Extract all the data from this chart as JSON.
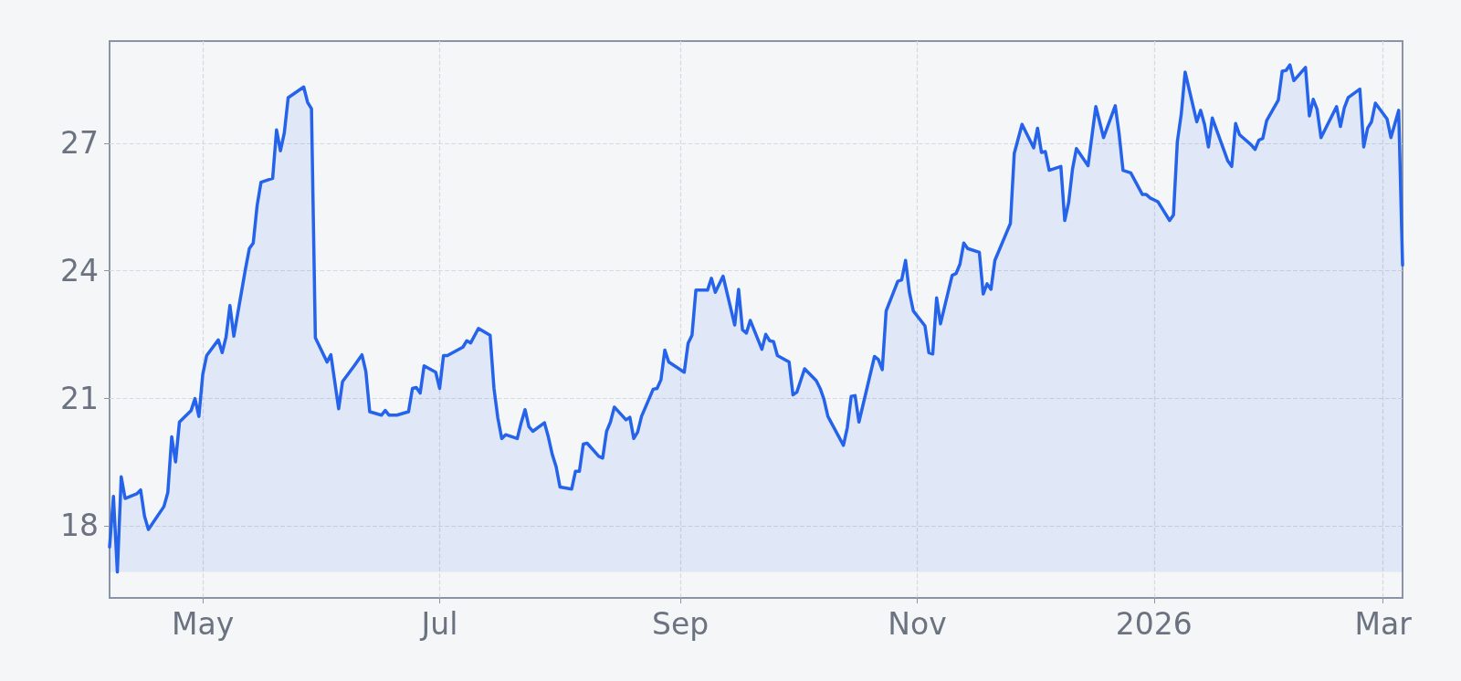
{
  "chart_data": {
    "type": "area",
    "x": [
      "2025-04-07",
      "2025-04-08",
      "2025-04-09",
      "2025-04-10",
      "2025-04-11",
      "2025-04-14",
      "2025-04-15",
      "2025-04-16",
      "2025-04-17",
      "2025-04-21",
      "2025-04-22",
      "2025-04-23",
      "2025-04-24",
      "2025-04-25",
      "2025-04-28",
      "2025-04-29",
      "2025-04-30",
      "2025-05-01",
      "2025-05-02",
      "2025-05-05",
      "2025-05-06",
      "2025-05-07",
      "2025-05-08",
      "2025-05-09",
      "2025-05-12",
      "2025-05-13",
      "2025-05-14",
      "2025-05-15",
      "2025-05-16",
      "2025-05-19",
      "2025-05-20",
      "2025-05-21",
      "2025-05-22",
      "2025-05-23",
      "2025-05-27",
      "2025-05-28",
      "2025-05-29",
      "2025-05-30",
      "2025-06-02",
      "2025-06-03",
      "2025-06-05",
      "2025-06-06",
      "2025-06-09",
      "2025-06-11",
      "2025-06-12",
      "2025-06-13",
      "2025-06-16",
      "2025-06-17",
      "2025-06-18",
      "2025-06-20",
      "2025-06-23",
      "2025-06-24",
      "2025-06-25",
      "2025-06-26",
      "2025-06-27",
      "2025-06-30",
      "2025-07-01",
      "2025-07-02",
      "2025-07-03",
      "2025-07-07",
      "2025-07-08",
      "2025-07-09",
      "2025-07-11",
      "2025-07-14",
      "2025-07-15",
      "2025-07-16",
      "2025-07-17",
      "2025-07-18",
      "2025-07-21",
      "2025-07-22",
      "2025-07-23",
      "2025-07-24",
      "2025-07-25",
      "2025-07-28",
      "2025-07-29",
      "2025-07-30",
      "2025-07-31",
      "2025-08-01",
      "2025-08-04",
      "2025-08-05",
      "2025-08-06",
      "2025-08-07",
      "2025-08-08",
      "2025-08-11",
      "2025-08-12",
      "2025-08-13",
      "2025-08-14",
      "2025-08-15",
      "2025-08-18",
      "2025-08-19",
      "2025-08-20",
      "2025-08-21",
      "2025-08-22",
      "2025-08-25",
      "2025-08-26",
      "2025-08-27",
      "2025-08-28",
      "2025-08-29",
      "2025-09-02",
      "2025-09-03",
      "2025-09-04",
      "2025-09-05",
      "2025-09-08",
      "2025-09-09",
      "2025-09-10",
      "2025-09-12",
      "2025-09-15",
      "2025-09-16",
      "2025-09-17",
      "2025-09-18",
      "2025-09-19",
      "2025-09-22",
      "2025-09-23",
      "2025-09-24",
      "2025-09-25",
      "2025-09-26",
      "2025-09-29",
      "2025-09-30",
      "2025-10-01",
      "2025-10-03",
      "2025-10-06",
      "2025-10-07",
      "2025-10-08",
      "2025-10-09",
      "2025-10-13",
      "2025-10-14",
      "2025-10-15",
      "2025-10-16",
      "2025-10-17",
      "2025-10-21",
      "2025-10-22",
      "2025-10-23",
      "2025-10-24",
      "2025-10-27",
      "2025-10-28",
      "2025-10-29",
      "2025-10-30",
      "2025-10-31",
      "2025-11-03",
      "2025-11-04",
      "2025-11-05",
      "2025-11-06",
      "2025-11-07",
      "2025-11-10",
      "2025-11-11",
      "2025-11-12",
      "2025-11-13",
      "2025-11-14",
      "2025-11-17",
      "2025-11-18",
      "2025-11-19",
      "2025-11-20",
      "2025-11-21",
      "2025-11-25",
      "2025-11-26",
      "2025-11-28",
      "2025-12-01",
      "2025-12-02",
      "2025-12-03",
      "2025-12-04",
      "2025-12-05",
      "2025-12-08",
      "2025-12-09",
      "2025-12-10",
      "2025-12-11",
      "2025-12-12",
      "2025-12-15",
      "2025-12-17",
      "2025-12-19",
      "2025-12-22",
      "2025-12-23",
      "2025-12-24",
      "2025-12-26",
      "2025-12-29",
      "2025-12-30",
      "2025-12-31",
      "2026-01-02",
      "2026-01-05",
      "2026-01-06",
      "2026-01-07",
      "2026-01-08",
      "2026-01-09",
      "2026-01-12",
      "2026-01-13",
      "2026-01-14",
      "2026-01-15",
      "2026-01-16",
      "2026-01-20",
      "2026-01-21",
      "2026-01-22",
      "2026-01-23",
      "2026-01-26",
      "2026-01-27",
      "2026-01-28",
      "2026-01-29",
      "2026-01-30",
      "2026-02-02",
      "2026-02-03",
      "2026-02-04",
      "2026-02-05",
      "2026-02-06",
      "2026-02-09",
      "2026-02-10",
      "2026-02-11",
      "2026-02-12",
      "2026-02-13",
      "2026-02-17",
      "2026-02-18",
      "2026-02-19",
      "2026-02-20",
      "2026-02-23",
      "2026-02-24",
      "2026-02-25",
      "2026-02-26",
      "2026-02-27",
      "2026-03-02",
      "2026-03-03",
      "2026-03-05",
      "2026-03-06"
    ],
    "series": [
      {
        "color": "#2563eb",
        "values": [
          17.5,
          18.69,
          16.91,
          19.15,
          18.64,
          18.75,
          18.84,
          18.22,
          17.91,
          18.45,
          18.78,
          20.09,
          19.5,
          20.44,
          20.71,
          20.99,
          20.57,
          21.56,
          22.0,
          22.37,
          22.07,
          22.44,
          23.18,
          22.46,
          24.04,
          24.52,
          24.65,
          25.53,
          26.08,
          26.17,
          27.31,
          26.82,
          27.24,
          28.07,
          28.32,
          27.96,
          27.81,
          22.42,
          21.85,
          22.02,
          20.75,
          21.39,
          21.76,
          22.02,
          21.63,
          20.68,
          20.6,
          20.71,
          20.6,
          20.6,
          20.68,
          21.23,
          21.25,
          21.12,
          21.76,
          21.61,
          21.23,
          22.0,
          22.0,
          22.2,
          22.35,
          22.3,
          22.64,
          22.48,
          21.23,
          20.53,
          20.05,
          20.14,
          20.05,
          20.42,
          20.73,
          20.33,
          20.22,
          20.42,
          20.09,
          19.68,
          19.39,
          18.91,
          18.86,
          19.28,
          19.28,
          19.92,
          19.94,
          19.63,
          19.59,
          20.22,
          20.44,
          20.79,
          20.49,
          20.55,
          20.05,
          20.2,
          20.57,
          21.21,
          21.23,
          21.43,
          22.13,
          21.85,
          21.61,
          22.29,
          22.48,
          23.54,
          23.54,
          23.82,
          23.49,
          23.87,
          22.72,
          23.56,
          22.61,
          22.53,
          22.83,
          22.15,
          22.5,
          22.35,
          22.33,
          22.0,
          21.85,
          21.08,
          21.14,
          21.69,
          21.41,
          21.23,
          20.97,
          20.57,
          19.89,
          20.31,
          21.04,
          21.06,
          20.44,
          21.98,
          21.91,
          21.67,
          23.05,
          23.75,
          23.78,
          24.24,
          23.49,
          23.05,
          22.7,
          22.07,
          22.04,
          23.36,
          22.75,
          23.89,
          23.93,
          24.15,
          24.65,
          24.52,
          24.43,
          23.45,
          23.69,
          23.56,
          24.24,
          25.11,
          26.76,
          27.44,
          26.89,
          27.35,
          26.78,
          26.8,
          26.36,
          26.45,
          25.18,
          25.6,
          26.39,
          26.87,
          26.47,
          27.86,
          27.13,
          27.88,
          27.22,
          26.36,
          26.3,
          25.79,
          25.79,
          25.71,
          25.62,
          25.18,
          25.31,
          27.04,
          27.68,
          28.67,
          27.5,
          27.77,
          27.44,
          26.91,
          27.59,
          26.58,
          26.45,
          27.46,
          27.2,
          26.96,
          26.85,
          27.07,
          27.11,
          27.53,
          28.01,
          28.69,
          28.71,
          28.84,
          28.47,
          28.78,
          27.64,
          28.03,
          27.79,
          27.13,
          27.86,
          27.39,
          27.83,
          28.07,
          28.27,
          26.91,
          27.35,
          27.5,
          27.94,
          27.57,
          27.13,
          27.77,
          24.13
        ]
      }
    ],
    "xlim": [
      "2025-04-07",
      "2026-03-06"
    ],
    "xticks": [
      {
        "value": "2025-05-01",
        "label": "May"
      },
      {
        "value": "2025-07-01",
        "label": "Jul"
      },
      {
        "value": "2025-09-01",
        "label": "Sep"
      },
      {
        "value": "2025-11-01",
        "label": "Nov"
      },
      {
        "value": "2026-01-01",
        "label": "2026"
      },
      {
        "value": "2026-03-01",
        "label": "Mar"
      }
    ],
    "ylim": [
      16.3,
      29.4
    ],
    "yticks": [
      18,
      21,
      24,
      27
    ],
    "grid": true,
    "line_style": "solid"
  }
}
